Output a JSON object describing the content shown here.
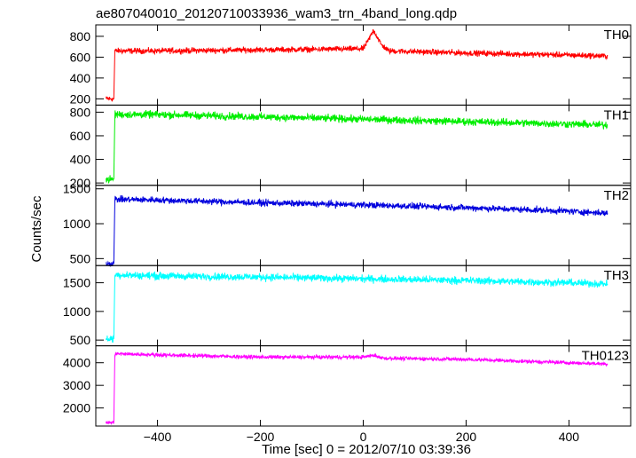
{
  "chart_data": {
    "type": "line",
    "title": "ae807040010_20120710033936_wam3_trn_4band_long.qdp",
    "xlabel": "Time [sec] 0 = 2012/07/10 03:39:36",
    "ylabel": "Counts/sec",
    "xlim": [
      -520,
      520
    ],
    "xticks": [
      -400,
      -200,
      0,
      200,
      400
    ],
    "x_range": [
      -500,
      475
    ],
    "grid": false,
    "panels": [
      {
        "name": "TH0",
        "color": "#ff0000",
        "ylim": [
          140,
          910
        ],
        "yticks": [
          200,
          400,
          600,
          800
        ],
        "series": [
          {
            "x": -500,
            "y": 200
          },
          {
            "x": -485,
            "y": 200
          },
          {
            "x": -483,
            "y": 660
          },
          {
            "x": -400,
            "y": 660
          },
          {
            "x": -200,
            "y": 670
          },
          {
            "x": 0,
            "y": 680
          },
          {
            "x": 10,
            "y": 760
          },
          {
            "x": 20,
            "y": 860
          },
          {
            "x": 35,
            "y": 720
          },
          {
            "x": 50,
            "y": 660
          },
          {
            "x": 200,
            "y": 640
          },
          {
            "x": 400,
            "y": 620
          },
          {
            "x": 475,
            "y": 610
          }
        ],
        "noise": 30
      },
      {
        "name": "TH1",
        "color": "#00ee00",
        "ylim": [
          180,
          860
        ],
        "yticks": [
          200,
          400,
          600,
          800
        ],
        "series": [
          {
            "x": -500,
            "y": 230
          },
          {
            "x": -485,
            "y": 230
          },
          {
            "x": -483,
            "y": 780
          },
          {
            "x": -400,
            "y": 780
          },
          {
            "x": -200,
            "y": 760
          },
          {
            "x": 0,
            "y": 740
          },
          {
            "x": 200,
            "y": 720
          },
          {
            "x": 400,
            "y": 700
          },
          {
            "x": 475,
            "y": 690
          }
        ],
        "noise": 35
      },
      {
        "name": "TH2",
        "color": "#0000dd",
        "ylim": [
          400,
          1550
        ],
        "yticks": [
          500,
          1000,
          1500
        ],
        "series": [
          {
            "x": -500,
            "y": 430
          },
          {
            "x": -485,
            "y": 430
          },
          {
            "x": -483,
            "y": 1350
          },
          {
            "x": -400,
            "y": 1340
          },
          {
            "x": -200,
            "y": 1300
          },
          {
            "x": 0,
            "y": 1270
          },
          {
            "x": 200,
            "y": 1230
          },
          {
            "x": 400,
            "y": 1180
          },
          {
            "x": 475,
            "y": 1150
          }
        ],
        "noise": 50
      },
      {
        "name": "TH3",
        "color": "#00ffff",
        "ylim": [
          400,
          1800
        ],
        "yticks": [
          500,
          1000,
          1500
        ],
        "series": [
          {
            "x": -500,
            "y": 520
          },
          {
            "x": -485,
            "y": 520
          },
          {
            "x": -483,
            "y": 1640
          },
          {
            "x": -400,
            "y": 1620
          },
          {
            "x": -200,
            "y": 1600
          },
          {
            "x": 0,
            "y": 1570
          },
          {
            "x": 200,
            "y": 1540
          },
          {
            "x": 400,
            "y": 1500
          },
          {
            "x": 475,
            "y": 1480
          }
        ],
        "noise": 70
      },
      {
        "name": "TH0123",
        "color": "#ff00ff",
        "ylim": [
          1200,
          4750
        ],
        "yticks": [
          2000,
          3000,
          4000
        ],
        "series": [
          {
            "x": -500,
            "y": 1350
          },
          {
            "x": -485,
            "y": 1350
          },
          {
            "x": -483,
            "y": 4400
          },
          {
            "x": -400,
            "y": 4350
          },
          {
            "x": -200,
            "y": 4250
          },
          {
            "x": 0,
            "y": 4250
          },
          {
            "x": 20,
            "y": 4330
          },
          {
            "x": 40,
            "y": 4200
          },
          {
            "x": 200,
            "y": 4150
          },
          {
            "x": 400,
            "y": 4000
          },
          {
            "x": 475,
            "y": 3950
          }
        ],
        "noise": 90
      }
    ]
  }
}
